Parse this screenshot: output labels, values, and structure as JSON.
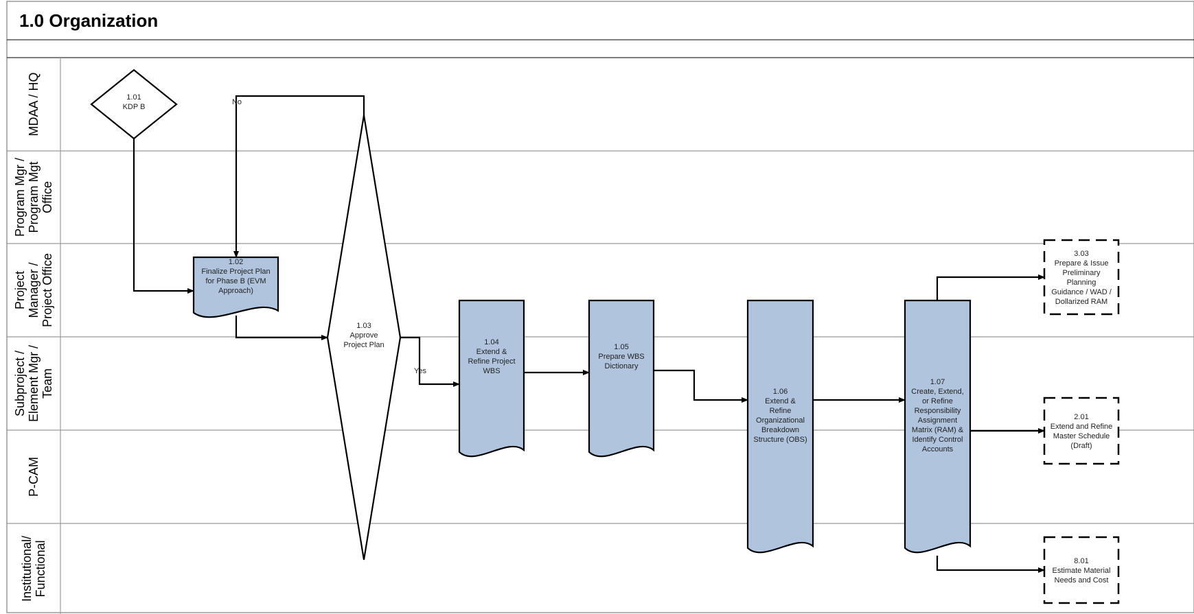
{
  "title": "1.0 Organization",
  "lanes": [
    {
      "id": "mdaa",
      "lines": [
        "MDAA / HQ"
      ]
    },
    {
      "id": "pgm",
      "lines": [
        "Program Mgr /",
        "Program Mgt",
        "Office"
      ]
    },
    {
      "id": "pm",
      "lines": [
        "Project",
        "Manager /",
        "Project Office"
      ]
    },
    {
      "id": "sub",
      "lines": [
        "Subproject /",
        "Element Mgr /",
        "Team"
      ]
    },
    {
      "id": "pcam",
      "lines": [
        "P-CAM"
      ]
    },
    {
      "id": "inst",
      "lines": [
        "Institutional/",
        "Functional"
      ]
    }
  ],
  "nodes": [
    {
      "id": "n101",
      "shape": "decision",
      "lines": [
        "1.01",
        "KDP B"
      ]
    },
    {
      "id": "n102",
      "shape": "document",
      "lines": [
        "1.02",
        "Finalize Project Plan",
        "for Phase B (EVM",
        "Approach)"
      ]
    },
    {
      "id": "n103",
      "shape": "decision",
      "lines": [
        "1.03",
        "Approve",
        "Project Plan"
      ]
    },
    {
      "id": "n104",
      "shape": "document",
      "lines": [
        "1.04",
        "Extend &",
        "Refine Project",
        "WBS"
      ]
    },
    {
      "id": "n105",
      "shape": "document",
      "lines": [
        "1.05",
        "Prepare WBS",
        "Dictionary"
      ]
    },
    {
      "id": "n106",
      "shape": "document",
      "lines": [
        "1.06",
        "Extend &",
        "Refine",
        "Organizational",
        "Breakdown",
        "Structure (OBS)"
      ]
    },
    {
      "id": "n107",
      "shape": "document",
      "lines": [
        "1.07",
        "Create, Extend,",
        "or Refine",
        "Responsibility",
        "Assignment",
        "Matrix (RAM) &",
        "Identify Control",
        "Accounts"
      ]
    },
    {
      "id": "n303",
      "shape": "offpage",
      "lines": [
        "3.03",
        "Prepare & Issue",
        "Preliminary",
        "Planning",
        "Guidance / WAD /",
        "Dollarized RAM"
      ]
    },
    {
      "id": "n201",
      "shape": "offpage",
      "lines": [
        "2.01",
        "Extend and Refine",
        "Master Schedule",
        "(Draft)"
      ]
    },
    {
      "id": "n801",
      "shape": "offpage",
      "lines": [
        "8.01",
        "Estimate Material",
        "Needs and Cost"
      ]
    }
  ],
  "edges": [
    {
      "id": "e101-102",
      "from": "n101",
      "to": "n102",
      "label": ""
    },
    {
      "id": "e102-103",
      "from": "n102",
      "to": "n103",
      "label": ""
    },
    {
      "id": "e103-102",
      "from": "n103",
      "to": "n102",
      "label": "No"
    },
    {
      "id": "e103-104",
      "from": "n103",
      "to": "n104",
      "label": "Yes"
    },
    {
      "id": "e104-105",
      "from": "n104",
      "to": "n105",
      "label": ""
    },
    {
      "id": "e105-106",
      "from": "n105",
      "to": "n106",
      "label": ""
    },
    {
      "id": "e106-107",
      "from": "n106",
      "to": "n107",
      "label": ""
    },
    {
      "id": "e107-303",
      "from": "n107",
      "to": "n303",
      "label": ""
    },
    {
      "id": "e107-201",
      "from": "n107",
      "to": "n201",
      "label": ""
    },
    {
      "id": "e107-801",
      "from": "n107",
      "to": "n801",
      "label": ""
    }
  ],
  "colors": {
    "process_fill": "#b0c4de",
    "stroke": "#000000",
    "lane_border": "#999999",
    "text": "#222222"
  }
}
